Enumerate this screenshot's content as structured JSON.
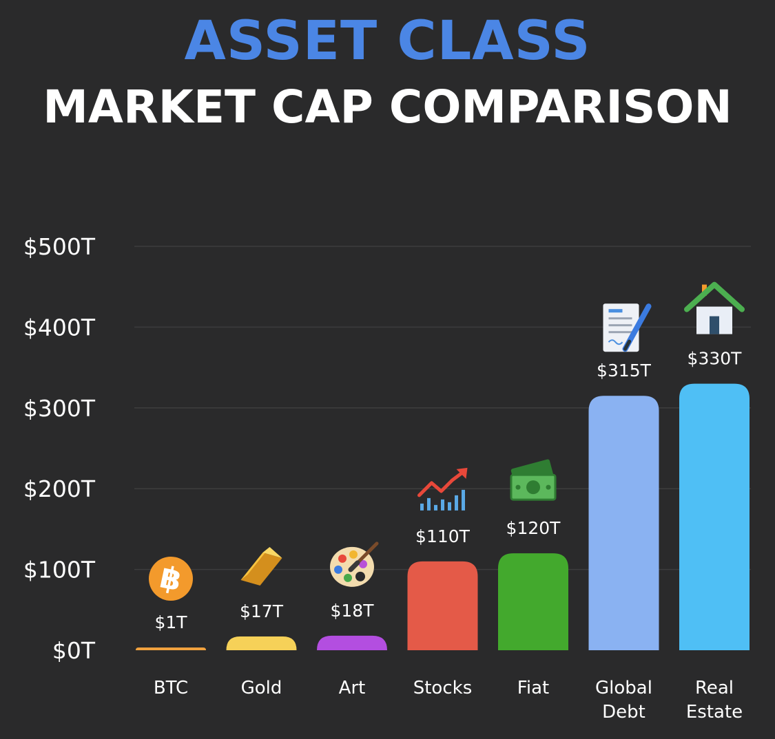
{
  "header": {
    "title_line1": "ASSET CLASS",
    "title_line2": "MARKET CAP COMPARISON"
  },
  "colors": {
    "title_accent": "#4b86e5",
    "background": "#2a2a2b",
    "gridline": "#3d3d3e"
  },
  "chart_data": {
    "type": "bar",
    "title": "ASSET CLASS MARKET CAP COMPARISON",
    "xlabel": "",
    "ylabel": "",
    "ylim": [
      0,
      500
    ],
    "y_ticks": [
      {
        "value": 0,
        "label": "$0T"
      },
      {
        "value": 100,
        "label": "$100T"
      },
      {
        "value": 200,
        "label": "$200T"
      },
      {
        "value": 300,
        "label": "$300T"
      },
      {
        "value": 400,
        "label": "$400T"
      },
      {
        "value": 500,
        "label": "$500T"
      }
    ],
    "grid": true,
    "legend": "none",
    "categories": [
      {
        "lines": [
          "BTC"
        ]
      },
      {
        "lines": [
          "Gold"
        ]
      },
      {
        "lines": [
          "Art"
        ]
      },
      {
        "lines": [
          "Stocks"
        ]
      },
      {
        "lines": [
          "Fiat"
        ]
      },
      {
        "lines": [
          "Global",
          "Debt"
        ]
      },
      {
        "lines": [
          "Real",
          "Estate"
        ]
      }
    ],
    "values": [
      1,
      17,
      18,
      110,
      120,
      315,
      330
    ],
    "value_labels": [
      "$1T",
      "$17T",
      "$18T",
      "$110T",
      "$120T",
      "$315T",
      "$330T"
    ],
    "bar_colors": [
      "#f0a13e",
      "#f6d158",
      "#b34ee0",
      "#e45a48",
      "#43a92d",
      "#8ab2f2",
      "#4fbff5"
    ],
    "icons": [
      "bitcoin-icon",
      "gold-bar-icon",
      "paint-palette-icon",
      "stock-chart-icon",
      "money-bill-icon",
      "document-pen-icon",
      "house-icon"
    ]
  }
}
